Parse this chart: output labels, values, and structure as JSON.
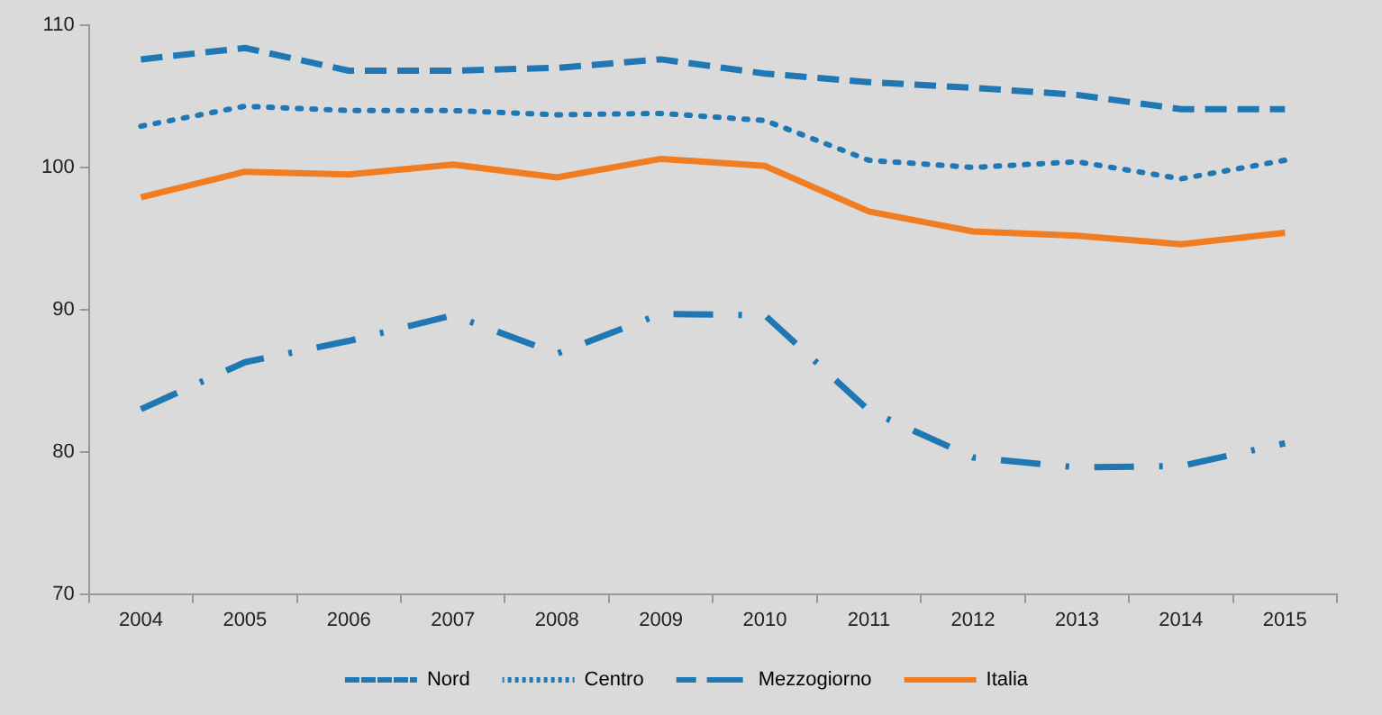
{
  "chart_data": {
    "type": "line",
    "categories": [
      "2004",
      "2005",
      "2006",
      "2007",
      "2008",
      "2009",
      "2010",
      "2011",
      "2012",
      "2013",
      "2014",
      "2015"
    ],
    "series": [
      {
        "name": "Nord",
        "color": "#1f77b4",
        "line_style": "dashed",
        "values": [
          107.6,
          108.4,
          106.8,
          106.8,
          107.0,
          107.6,
          106.6,
          106.0,
          105.6,
          105.1,
          104.1,
          104.1
        ]
      },
      {
        "name": "Centro",
        "color": "#1f77b4",
        "line_style": "dotted",
        "values": [
          102.9,
          104.3,
          104.0,
          104.0,
          103.7,
          103.8,
          103.3,
          100.5,
          100.0,
          100.4,
          99.2,
          100.5
        ]
      },
      {
        "name": "Mezzogiorno",
        "color": "#1f77b4",
        "line_style": "dashdot",
        "values": [
          83.0,
          86.3,
          87.8,
          89.6,
          86.9,
          89.7,
          89.6,
          82.9,
          79.6,
          78.9,
          79.0,
          80.6
        ]
      },
      {
        "name": "Italia",
        "color": "#f07d22",
        "line_style": "solid",
        "values": [
          97.9,
          99.7,
          99.5,
          100.2,
          99.3,
          100.6,
          100.1,
          96.9,
          95.5,
          95.2,
          94.6,
          95.4
        ]
      }
    ],
    "ylim": [
      70,
      110
    ],
    "yticks": [
      70,
      80,
      90,
      100,
      110
    ],
    "grid": false,
    "legend": "bottom",
    "marker": "none"
  }
}
